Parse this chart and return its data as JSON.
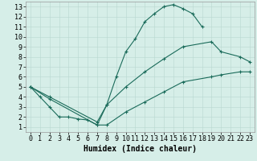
{
  "title": "",
  "xlabel": "Humidex (Indice chaleur)",
  "bg_color": "#d6eee8",
  "grid_color": "#b8d8d0",
  "line_color": "#1a6b5a",
  "xlim": [
    -0.5,
    23.5
  ],
  "ylim": [
    0.5,
    13.5
  ],
  "xticks": [
    0,
    1,
    2,
    3,
    4,
    5,
    6,
    7,
    8,
    9,
    10,
    11,
    12,
    13,
    14,
    15,
    16,
    17,
    18,
    19,
    20,
    21,
    22,
    23
  ],
  "yticks": [
    1,
    2,
    3,
    4,
    5,
    6,
    7,
    8,
    9,
    10,
    11,
    12,
    13
  ],
  "line1_x": [
    0,
    1,
    2,
    3,
    4,
    5,
    6,
    7,
    8,
    9,
    10,
    11,
    12,
    13,
    14,
    15,
    16,
    17,
    18
  ],
  "line1_y": [
    5,
    4,
    3,
    2,
    2,
    1.8,
    1.7,
    1.2,
    3.2,
    6.0,
    8.5,
    9.8,
    11.5,
    12.3,
    13.0,
    13.2,
    12.8,
    12.3,
    11.0
  ],
  "line2_x": [
    0,
    2,
    7,
    8,
    10,
    12,
    14,
    16,
    19,
    20,
    22,
    23
  ],
  "line2_y": [
    5,
    4,
    1.5,
    3.2,
    5.0,
    6.5,
    7.8,
    9.0,
    9.5,
    8.5,
    8.0,
    7.5
  ],
  "line3_x": [
    0,
    2,
    7,
    8,
    10,
    12,
    14,
    16,
    19,
    20,
    22,
    23
  ],
  "line3_y": [
    5,
    3.8,
    1.2,
    1.2,
    2.5,
    3.5,
    4.5,
    5.5,
    6.0,
    6.2,
    6.5,
    6.5
  ],
  "font_size": 6,
  "label_fontsize": 7
}
